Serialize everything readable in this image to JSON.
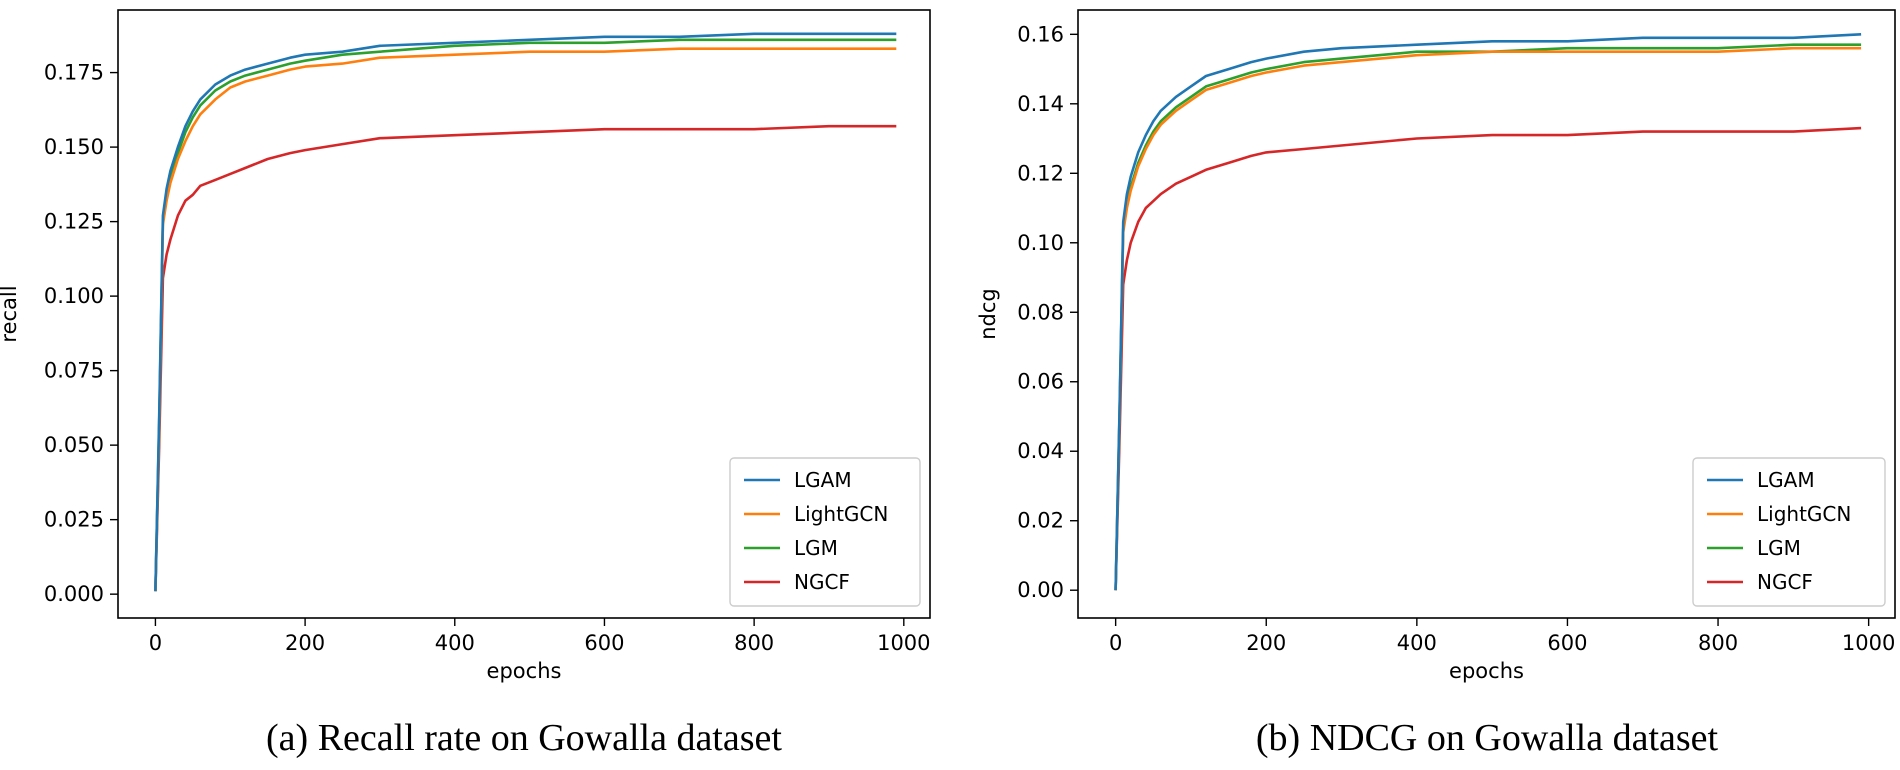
{
  "chart_data": [
    {
      "type": "line",
      "caption": "(a) Recall rate on Gowalla dataset",
      "xlabel": "epochs",
      "ylabel": "recall",
      "xlim": [
        -50,
        1035
      ],
      "ylim": [
        -0.008,
        0.196
      ],
      "xticks": [
        0,
        200,
        400,
        600,
        800,
        1000
      ],
      "xtick_labels": [
        "0",
        "200",
        "400",
        "600",
        "800",
        "1000"
      ],
      "yticks": [
        0.0,
        0.025,
        0.05,
        0.075,
        0.1,
        0.125,
        0.15,
        0.175
      ],
      "ytick_labels": [
        "0.000",
        "0.025",
        "0.050",
        "0.075",
        "0.100",
        "0.125",
        "0.150",
        "0.175"
      ],
      "legend_position": "lower-right",
      "x": [
        0,
        5,
        10,
        15,
        20,
        30,
        40,
        50,
        60,
        80,
        100,
        120,
        150,
        180,
        200,
        250,
        300,
        400,
        500,
        600,
        700,
        800,
        900,
        990
      ],
      "series": [
        {
          "name": "LGAM",
          "color": "#1f77b4",
          "values": [
            0.001,
            0.06,
            0.127,
            0.136,
            0.142,
            0.15,
            0.157,
            0.162,
            0.166,
            0.171,
            0.174,
            0.176,
            0.178,
            0.18,
            0.181,
            0.182,
            0.184,
            0.185,
            0.186,
            0.187,
            0.187,
            0.188,
            0.188,
            0.188
          ]
        },
        {
          "name": "LightGCN",
          "color": "#ff7f0e",
          "values": [
            0.001,
            0.055,
            0.124,
            0.132,
            0.138,
            0.146,
            0.152,
            0.157,
            0.161,
            0.166,
            0.17,
            0.172,
            0.174,
            0.176,
            0.177,
            0.178,
            0.18,
            0.181,
            0.182,
            0.182,
            0.183,
            0.183,
            0.183,
            0.183
          ]
        },
        {
          "name": "LGM",
          "color": "#2ca02c",
          "values": [
            0.001,
            0.058,
            0.125,
            0.134,
            0.14,
            0.148,
            0.155,
            0.16,
            0.164,
            0.169,
            0.172,
            0.174,
            0.176,
            0.178,
            0.179,
            0.181,
            0.182,
            0.184,
            0.185,
            0.185,
            0.186,
            0.186,
            0.186,
            0.186
          ]
        },
        {
          "name": "NGCF",
          "color": "#d62728",
          "values": [
            0.001,
            0.05,
            0.106,
            0.114,
            0.119,
            0.127,
            0.132,
            0.134,
            0.137,
            0.139,
            0.141,
            0.143,
            0.146,
            0.148,
            0.149,
            0.151,
            0.153,
            0.154,
            0.155,
            0.156,
            0.156,
            0.156,
            0.157,
            0.157
          ]
        }
      ]
    },
    {
      "type": "line",
      "caption": "(b) NDCG on Gowalla dataset",
      "xlabel": "epochs",
      "ylabel": "ndcg",
      "xlim": [
        -50,
        1035
      ],
      "ylim": [
        -0.008,
        0.167
      ],
      "xticks": [
        0,
        200,
        400,
        600,
        800,
        1000
      ],
      "xtick_labels": [
        "0",
        "200",
        "400",
        "600",
        "800",
        "1000"
      ],
      "yticks": [
        0.0,
        0.02,
        0.04,
        0.06,
        0.08,
        0.1,
        0.12,
        0.14,
        0.16
      ],
      "ytick_labels": [
        "0.00",
        "0.02",
        "0.04",
        "0.06",
        "0.08",
        "0.10",
        "0.12",
        "0.14",
        "0.16"
      ],
      "legend_position": "lower-right",
      "x": [
        0,
        5,
        10,
        15,
        20,
        30,
        40,
        50,
        60,
        80,
        100,
        120,
        150,
        180,
        200,
        250,
        300,
        400,
        500,
        600,
        700,
        800,
        900,
        990
      ],
      "series": [
        {
          "name": "LGAM",
          "color": "#1f77b4",
          "values": [
            0.0,
            0.05,
            0.106,
            0.114,
            0.119,
            0.126,
            0.131,
            0.135,
            0.138,
            0.142,
            0.145,
            0.148,
            0.15,
            0.152,
            0.153,
            0.155,
            0.156,
            0.157,
            0.158,
            0.158,
            0.159,
            0.159,
            0.159,
            0.16
          ]
        },
        {
          "name": "LightGCN",
          "color": "#ff7f0e",
          "values": [
            0.0,
            0.048,
            0.103,
            0.11,
            0.115,
            0.122,
            0.127,
            0.131,
            0.134,
            0.138,
            0.141,
            0.144,
            0.146,
            0.148,
            0.149,
            0.151,
            0.152,
            0.154,
            0.155,
            0.155,
            0.155,
            0.155,
            0.156,
            0.156
          ]
        },
        {
          "name": "LGM",
          "color": "#2ca02c",
          "values": [
            0.0,
            0.049,
            0.104,
            0.111,
            0.116,
            0.123,
            0.128,
            0.132,
            0.135,
            0.139,
            0.142,
            0.145,
            0.147,
            0.149,
            0.15,
            0.152,
            0.153,
            0.155,
            0.155,
            0.156,
            0.156,
            0.156,
            0.157,
            0.157
          ]
        },
        {
          "name": "NGCF",
          "color": "#d62728",
          "values": [
            0.0,
            0.042,
            0.088,
            0.095,
            0.1,
            0.106,
            0.11,
            0.112,
            0.114,
            0.117,
            0.119,
            0.121,
            0.123,
            0.125,
            0.126,
            0.127,
            0.128,
            0.13,
            0.131,
            0.131,
            0.132,
            0.132,
            0.132,
            0.133
          ]
        }
      ]
    }
  ]
}
